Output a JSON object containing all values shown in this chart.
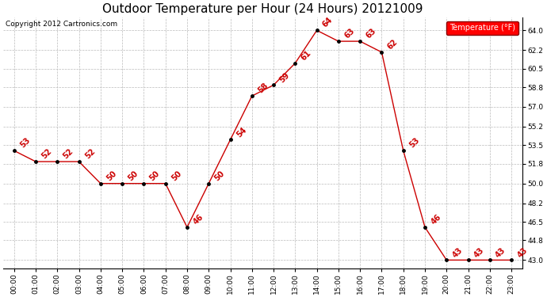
{
  "title": "Outdoor Temperature per Hour (24 Hours) 20121009",
  "copyright": "Copyright 2012 Cartronics.com",
  "legend_label": "Temperature (°F)",
  "hours": [
    0,
    1,
    2,
    3,
    4,
    5,
    6,
    7,
    8,
    9,
    10,
    11,
    12,
    13,
    14,
    15,
    16,
    17,
    18,
    19,
    20,
    21,
    22,
    23
  ],
  "x_labels": [
    "00:00",
    "01:00",
    "02:00",
    "03:00",
    "04:00",
    "05:00",
    "06:00",
    "07:00",
    "08:00",
    "09:00",
    "10:00",
    "11:00",
    "12:00",
    "13:00",
    "14:00",
    "15:00",
    "16:00",
    "17:00",
    "18:00",
    "19:00",
    "20:00",
    "21:00",
    "22:00",
    "23:00"
  ],
  "temperatures": [
    53,
    52,
    52,
    52,
    50,
    50,
    50,
    50,
    46,
    50,
    54,
    58,
    59,
    61,
    64,
    63,
    63,
    62,
    53,
    46,
    43,
    43,
    43,
    43
  ],
  "line_color": "#cc0000",
  "marker_color": "#000000",
  "label_color": "#cc0000",
  "bg_color": "#ffffff",
  "grid_color": "#bbbbbb",
  "yticks": [
    43.0,
    44.8,
    46.5,
    48.2,
    50.0,
    51.8,
    53.5,
    55.2,
    57.0,
    58.8,
    60.5,
    62.2,
    64.0
  ],
  "ymin": 42.2,
  "ymax": 65.2,
  "title_fontsize": 11,
  "label_fontsize": 6.5,
  "annot_fontsize": 7,
  "copyright_fontsize": 6.5
}
